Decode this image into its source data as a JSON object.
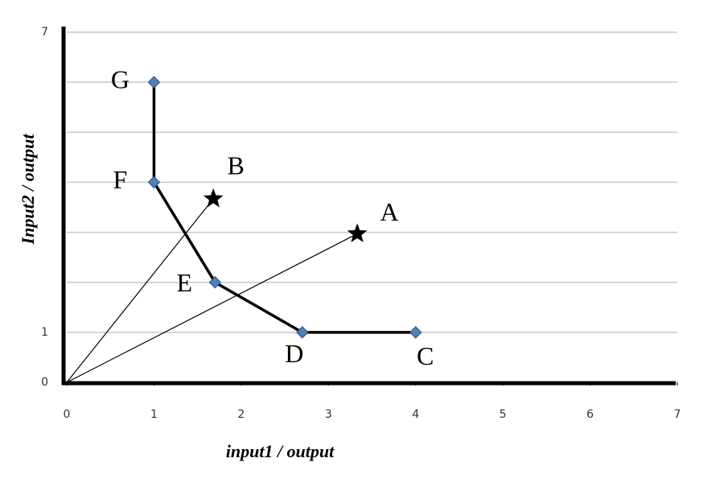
{
  "chart_data": {
    "type": "line",
    "x_label": "input1 / output",
    "y_label": "Input2 / output",
    "xlim": [
      0,
      7
    ],
    "ylim": [
      0,
      7
    ],
    "xticks": [
      0,
      1,
      2,
      3,
      4,
      5,
      6,
      7
    ],
    "yticks": [
      0,
      1,
      {
        "value": 2,
        "label": null
      },
      {
        "value": 3,
        "label": null
      },
      {
        "value": 4,
        "label": null
      },
      {
        "value": 5,
        "label": null
      },
      {
        "value": 6,
        "label": null
      },
      7
    ],
    "grid": true,
    "series": [
      {
        "type": "line",
        "marker": "diamond",
        "color": "#000000",
        "marker_color": "#4f81bd",
        "x": [
          1,
          1,
          1.7,
          2.7,
          4
        ],
        "values": [
          6,
          4,
          2,
          1,
          1
        ],
        "point_labels": [
          "G",
          "F",
          "E",
          "D",
          "C"
        ]
      },
      {
        "type": "scatter",
        "marker": "star",
        "color": "#000000",
        "rays_from_origin": true,
        "x": [
          3.33,
          1.68
        ],
        "values": [
          2.97,
          3.67
        ],
        "point_labels": [
          "A",
          "B"
        ]
      }
    ]
  }
}
